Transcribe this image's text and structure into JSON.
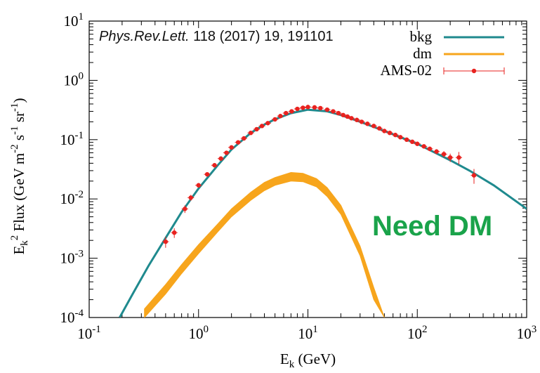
{
  "chart_data": {
    "type": "line",
    "x_scale": "log",
    "y_scale": "log",
    "xlim": [
      0.1,
      1000
    ],
    "ylim": [
      0.0001,
      10
    ],
    "xlabel": "E_k (GeV)",
    "ylabel": "E_k^2 Flux (GeV m^-2 s^-1 sr^-1)",
    "x_ticks": [
      {
        "value": 0.1,
        "base": "10",
        "exp": "-1"
      },
      {
        "value": 1,
        "base": "10",
        "exp": "0"
      },
      {
        "value": 10,
        "base": "10",
        "exp": "1"
      },
      {
        "value": 100,
        "base": "10",
        "exp": "2"
      },
      {
        "value": 1000,
        "base": "10",
        "exp": "3"
      }
    ],
    "y_ticks": [
      {
        "value": 0.0001,
        "base": "10",
        "exp": "-4"
      },
      {
        "value": 0.001,
        "base": "10",
        "exp": "-3"
      },
      {
        "value": 0.01,
        "base": "10",
        "exp": "-2"
      },
      {
        "value": 0.1,
        "base": "10",
        "exp": "-1"
      },
      {
        "value": 1,
        "base": "10",
        "exp": "0"
      },
      {
        "value": 10,
        "base": "10",
        "exp": "1"
      }
    ],
    "legend": {
      "placement": "top-right",
      "entries": [
        {
          "name": "bkg",
          "color": "#1f8a8e",
          "style": "line"
        },
        {
          "name": "dm",
          "color": "#f7a51c",
          "style": "band"
        },
        {
          "name": "AMS-02",
          "color": "#e8221f",
          "style": "points-with-errorbars"
        }
      ]
    },
    "series": [
      {
        "name": "bkg",
        "color": "#1f8a8e",
        "x": [
          0.19,
          0.25,
          0.35,
          0.5,
          0.7,
          1.0,
          1.5,
          2.0,
          3.0,
          4.0,
          5.0,
          7.0,
          10.0,
          15.0,
          20.0,
          30.0,
          50.0,
          70.0,
          100.0,
          200.0,
          300.0,
          500.0,
          1000.0
        ],
        "y": [
          0.0001,
          0.00025,
          0.00075,
          0.0022,
          0.006,
          0.015,
          0.037,
          0.068,
          0.13,
          0.18,
          0.22,
          0.28,
          0.32,
          0.3,
          0.26,
          0.2,
          0.14,
          0.11,
          0.085,
          0.045,
          0.03,
          0.017,
          0.0068
        ]
      },
      {
        "name": "dm",
        "color": "#f7a51c",
        "x": [
          0.32,
          0.5,
          0.7,
          1.0,
          1.5,
          2.0,
          3.0,
          4.0,
          5.0,
          7.0,
          9.0,
          12.0,
          15.0,
          20.0,
          30.0,
          40.0,
          50.0
        ],
        "y_low": [
          0.0001,
          0.00025,
          0.00055,
          0.0012,
          0.0028,
          0.005,
          0.0095,
          0.0138,
          0.017,
          0.02,
          0.0195,
          0.016,
          0.011,
          0.0055,
          0.0011,
          0.0002,
          0.0001
        ],
        "y_high": [
          0.00014,
          0.00036,
          0.00078,
          0.0017,
          0.0038,
          0.0068,
          0.013,
          0.019,
          0.023,
          0.028,
          0.027,
          0.022,
          0.0155,
          0.0078,
          0.0016,
          0.00032,
          0.0001
        ]
      },
      {
        "name": "AMS-02",
        "color": "#e8221f",
        "x": [
          0.5,
          0.6,
          0.75,
          0.85,
          1.0,
          1.2,
          1.4,
          1.6,
          1.8,
          2.0,
          2.3,
          2.6,
          3.0,
          3.4,
          3.8,
          4.3,
          5.0,
          5.6,
          6.3,
          7.1,
          8.0,
          9.0,
          10.0,
          11.5,
          13.0,
          15.0,
          17.0,
          19.0,
          21.0,
          23.0,
          25.0,
          28.0,
          31.0,
          35.0,
          40.0,
          45.0,
          50.0,
          56.0,
          63.0,
          70.0,
          80.0,
          90.0,
          100.0,
          115.0,
          130.0,
          150.0,
          175.0,
          200.0,
          240.0,
          330.0
        ],
        "y": [
          0.0019,
          0.0027,
          0.0068,
          0.0105,
          0.017,
          0.026,
          0.037,
          0.048,
          0.06,
          0.074,
          0.09,
          0.105,
          0.13,
          0.15,
          0.17,
          0.19,
          0.22,
          0.25,
          0.28,
          0.3,
          0.33,
          0.345,
          0.355,
          0.35,
          0.34,
          0.32,
          0.3,
          0.28,
          0.26,
          0.245,
          0.23,
          0.215,
          0.2,
          0.185,
          0.17,
          0.155,
          0.14,
          0.13,
          0.12,
          0.11,
          0.1,
          0.092,
          0.085,
          0.077,
          0.07,
          0.063,
          0.057,
          0.05,
          0.05,
          0.025
        ],
        "yerr": [
          0.0004,
          0.0005,
          0.001,
          0.0012,
          0.0015,
          0.002,
          0.002,
          0.002,
          0.003,
          0.003,
          0.003,
          0.004,
          0.004,
          0.005,
          0.005,
          0.006,
          0.006,
          0.006,
          0.007,
          0.007,
          0.008,
          0.008,
          0.008,
          0.008,
          0.008,
          0.008,
          0.007,
          0.007,
          0.007,
          0.006,
          0.006,
          0.006,
          0.006,
          0.006,
          0.006,
          0.006,
          0.006,
          0.006,
          0.006,
          0.006,
          0.006,
          0.006,
          0.006,
          0.006,
          0.006,
          0.006,
          0.007,
          0.008,
          0.012,
          0.007
        ]
      }
    ]
  },
  "annotations": {
    "citation_journal": "Phys.Rev.Lett.",
    "citation_ref": "118 (2017) 19, 191101",
    "callout": "Need DM"
  }
}
